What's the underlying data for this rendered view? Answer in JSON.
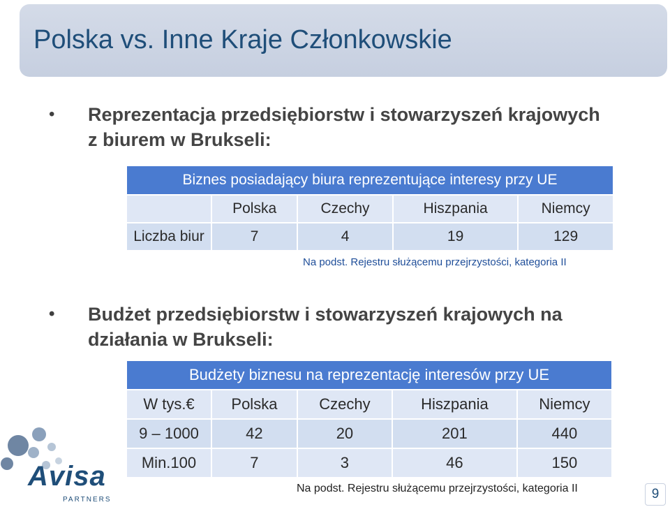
{
  "title": "Polska vs. Inne Kraje Członkowskie",
  "bullet1": {
    "line1": "Reprezentacja przedsiębiorstw i stowarzyszeń krajowych",
    "line2": "z biurem w Brukseli:"
  },
  "table1": {
    "header": "Biznes posiadający biura reprezentujące interesy przy UE",
    "columns": [
      "",
      "Polska",
      "Czechy",
      "Hiszpania",
      "Niemcy"
    ],
    "rows": [
      [
        "Liczba biur",
        "7",
        "4",
        "19",
        "129"
      ]
    ]
  },
  "source1": "Na podst. Rejestru służącemu przejrzystości, kategoria II",
  "bullet2": {
    "line1": "Budżet przedsiębiorstw i stowarzyszeń krajowych na",
    "line2": "działania w Brukseli:"
  },
  "table2": {
    "header": "Budżety biznesu na reprezentację interesów przy UE",
    "columns": [
      "W tys.€",
      "Polska",
      "Czechy",
      "Hiszpania",
      "Niemcy"
    ],
    "rows": [
      [
        "9 – 1000",
        "42",
        "20",
        "201",
        "440"
      ],
      [
        "Min.100",
        "7",
        "3",
        "46",
        "150"
      ]
    ]
  },
  "source2": "Na podst. Rejestru służącemu przejrzystości, kategoria II",
  "page_number": "9",
  "logo": {
    "name": "Avisa",
    "subtitle": "PARTNERS",
    "color": "#1f4e79"
  },
  "colors": {
    "title": "#1f4e79",
    "table_header": "#4a7bd0",
    "table_row": "#dfe7f5"
  }
}
